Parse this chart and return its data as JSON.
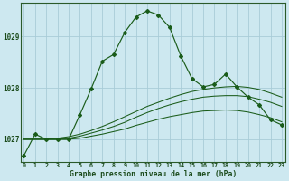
{
  "title": "Graphe pression niveau de la mer (hPa)",
  "bg_color": "#cde8f0",
  "grid_color": "#a8ccd8",
  "line_color": "#1a5c1a",
  "x_ticks": [
    0,
    1,
    2,
    3,
    4,
    5,
    6,
    7,
    8,
    9,
    10,
    11,
    12,
    13,
    14,
    15,
    16,
    17,
    18,
    19,
    20,
    21,
    22,
    23
  ],
  "y_ticks": [
    1027,
    1028,
    1029
  ],
  "ylim": [
    1026.55,
    1029.65
  ],
  "xlim": [
    -0.3,
    23.3
  ],
  "main_line": [
    1026.68,
    1027.1,
    1027.0,
    1027.0,
    1027.0,
    1027.48,
    1027.98,
    1028.52,
    1028.65,
    1029.08,
    1029.38,
    1029.5,
    1029.42,
    1029.18,
    1028.62,
    1028.18,
    1028.02,
    1028.07,
    1028.27,
    1028.02,
    1027.82,
    1027.67,
    1027.38,
    1027.28
  ],
  "flat_line1": [
    1027.0,
    1027.0,
    1027.0,
    1027.02,
    1027.05,
    1027.1,
    1027.17,
    1027.25,
    1027.34,
    1027.44,
    1027.54,
    1027.64,
    1027.72,
    1027.8,
    1027.87,
    1027.93,
    1027.97,
    1028.0,
    1028.02,
    1028.03,
    1028.01,
    1027.97,
    1027.9,
    1027.82
  ],
  "flat_line2": [
    1027.0,
    1027.0,
    1027.0,
    1027.0,
    1027.02,
    1027.06,
    1027.12,
    1027.18,
    1027.25,
    1027.33,
    1027.43,
    1027.52,
    1027.6,
    1027.67,
    1027.73,
    1027.78,
    1027.82,
    1027.84,
    1027.85,
    1027.85,
    1027.83,
    1027.78,
    1027.72,
    1027.64
  ],
  "flat_line3": [
    1027.0,
    1027.0,
    1027.0,
    1027.0,
    1027.0,
    1027.02,
    1027.06,
    1027.1,
    1027.15,
    1027.2,
    1027.27,
    1027.33,
    1027.39,
    1027.44,
    1027.48,
    1027.52,
    1027.55,
    1027.56,
    1027.57,
    1027.56,
    1027.53,
    1027.48,
    1027.42,
    1027.34
  ]
}
